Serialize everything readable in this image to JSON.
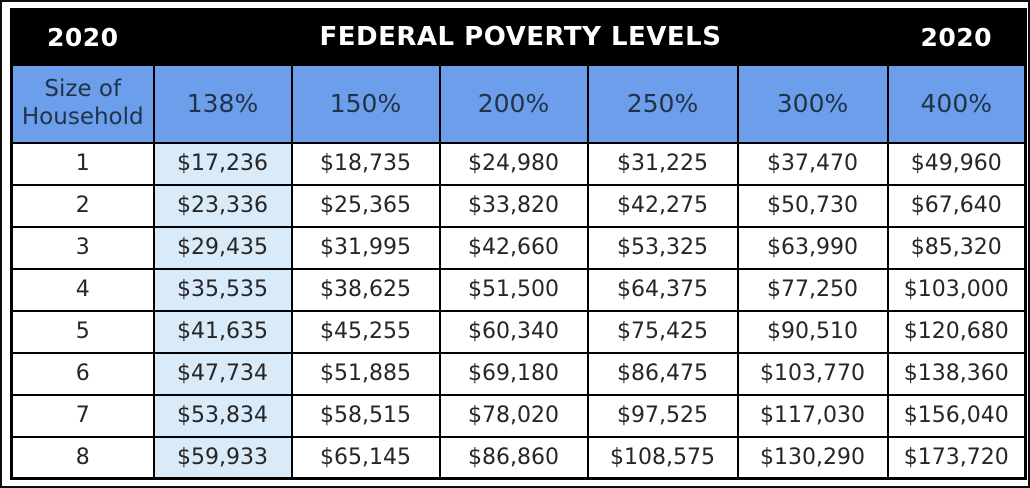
{
  "header": {
    "year_left": "2020",
    "title": "FEDERAL POVERTY LEVELS",
    "year_right": "2020"
  },
  "chart_data": {
    "type": "table",
    "title": "FEDERAL POVERTY LEVELS",
    "year": "2020",
    "columns": [
      "Size of Household",
      "138%",
      "150%",
      "200%",
      "250%",
      "300%",
      "400%"
    ],
    "highlighted_column": "138%",
    "rows": [
      [
        "1",
        "$17,236",
        "$18,735",
        "$24,980",
        "$31,225",
        "$37,470",
        "$49,960"
      ],
      [
        "2",
        "$23,336",
        "$25,365",
        "$33,820",
        "$42,275",
        "$50,730",
        "$67,640"
      ],
      [
        "3",
        "$29,435",
        "$31,995",
        "$42,660",
        "$53,325",
        "$63,990",
        "$85,320"
      ],
      [
        "4",
        "$35,535",
        "$38,625",
        "$51,500",
        "$64,375",
        "$77,250",
        "$103,000"
      ],
      [
        "5",
        "$41,635",
        "$45,255",
        "$60,340",
        "$75,425",
        "$90,510",
        "$120,680"
      ],
      [
        "6",
        "$47,734",
        "$51,885",
        "$69,180",
        "$86,475",
        "$103,770",
        "$138,360"
      ],
      [
        "7",
        "$53,834",
        "$58,515",
        "$78,020",
        "$97,525",
        "$117,030",
        "$156,040"
      ],
      [
        "8",
        "$59,933",
        "$65,145",
        "$86,860",
        "$108,575",
        "$130,290",
        "$173,720"
      ]
    ]
  },
  "colors": {
    "header-bg": "#000000",
    "header-text": "#ffffff",
    "column-header-bg": "#6d9eeb",
    "column-header-text": "#203349",
    "highlight-column-bg": "#d9eaf8",
    "cell-text": "#262626",
    "border-color": "#000000",
    "page-bg": "#ffffff"
  }
}
